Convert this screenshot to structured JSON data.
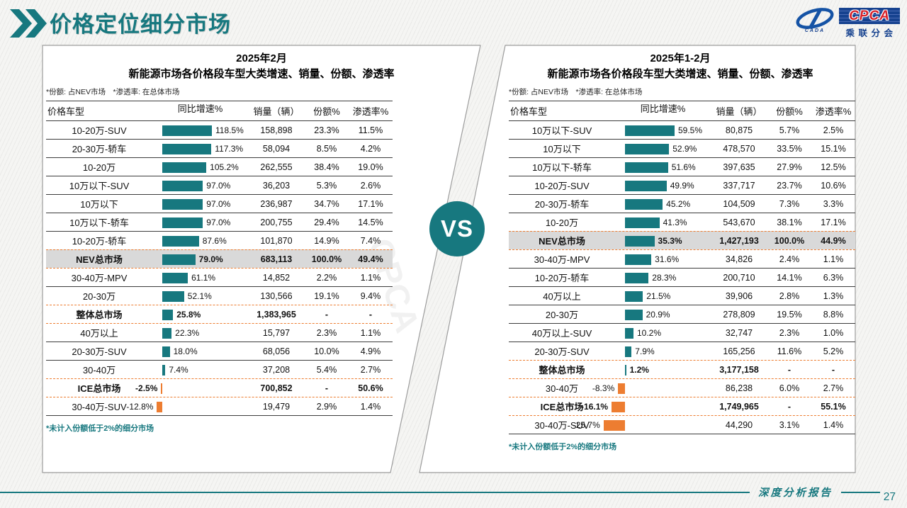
{
  "page": {
    "title": "价格定位细分市场",
    "footer_label": "深度分析报告",
    "page_number": "27"
  },
  "logo": {
    "acronym": "CPCA",
    "branch": "乘联分会",
    "mark": "CADA"
  },
  "vs_label": "VS",
  "watermark": "CPCA",
  "colors": {
    "teal": "#17787F",
    "orange": "#ED7D31",
    "highlight_bg": "#D9D9D9"
  },
  "chart_data": [
    {
      "type": "table",
      "title_line1": "2025年2月",
      "title_line2": "新能源市场各价格段车型大类增速、销量、份额、渗透率",
      "note": "*份额: 占NEV市场　*渗透率: 在总体市场",
      "footnote": "*未计入份额低于2%的细分市场",
      "columns": [
        "价格车型",
        "同比增速%",
        "销量（辆）",
        "份额%",
        "渗透率%"
      ],
      "rows": [
        {
          "label": "10-20万-SUV",
          "growth": 118.5,
          "growth_label": "118.5%",
          "sales": "158,898",
          "share": "23.3%",
          "penetration": "11.5%",
          "style": "",
          "divider": "solid"
        },
        {
          "label": "20-30万-轿车",
          "growth": 117.3,
          "growth_label": "117.3%",
          "sales": "58,094",
          "share": "8.5%",
          "penetration": "4.2%",
          "style": "",
          "divider": "solid"
        },
        {
          "label": "10-20万",
          "growth": 105.2,
          "growth_label": "105.2%",
          "sales": "262,555",
          "share": "38.4%",
          "penetration": "19.0%",
          "style": "",
          "divider": "solid"
        },
        {
          "label": "10万以下-SUV",
          "growth": 97.0,
          "growth_label": "97.0%",
          "sales": "36,203",
          "share": "5.3%",
          "penetration": "2.6%",
          "style": "",
          "divider": "solid"
        },
        {
          "label": "10万以下",
          "growth": 97.0,
          "growth_label": "97.0%",
          "sales": "236,987",
          "share": "34.7%",
          "penetration": "17.1%",
          "style": "",
          "divider": "solid"
        },
        {
          "label": "10万以下-轿车",
          "growth": 97.0,
          "growth_label": "97.0%",
          "sales": "200,755",
          "share": "29.4%",
          "penetration": "14.5%",
          "style": "",
          "divider": "solid"
        },
        {
          "label": "10-20万-轿车",
          "growth": 87.6,
          "growth_label": "87.6%",
          "sales": "101,870",
          "share": "14.9%",
          "penetration": "7.4%",
          "style": "",
          "divider": "solid"
        },
        {
          "label": "NEV总市场",
          "growth": 79.0,
          "growth_label": "79.0%",
          "sales": "683,113",
          "share": "100.0%",
          "penetration": "49.4%",
          "style": "nev",
          "divider": "dashed"
        },
        {
          "label": "30-40万-MPV",
          "growth": 61.1,
          "growth_label": "61.1%",
          "sales": "14,852",
          "share": "2.2%",
          "penetration": "1.1%",
          "style": "",
          "divider": "dashed"
        },
        {
          "label": "20-30万",
          "growth": 52.1,
          "growth_label": "52.1%",
          "sales": "130,566",
          "share": "19.1%",
          "penetration": "9.4%",
          "style": "",
          "divider": "solid"
        },
        {
          "label": "整体总市场",
          "growth": 25.8,
          "growth_label": "25.8%",
          "sales": "1,383,965",
          "share": "-",
          "penetration": "-",
          "style": "total",
          "divider": "dashed"
        },
        {
          "label": "40万以上",
          "growth": 22.3,
          "growth_label": "22.3%",
          "sales": "15,797",
          "share": "2.3%",
          "penetration": "1.1%",
          "style": "",
          "divider": "dashed"
        },
        {
          "label": "20-30万-SUV",
          "growth": 18.0,
          "growth_label": "18.0%",
          "sales": "68,056",
          "share": "10.0%",
          "penetration": "4.9%",
          "style": "",
          "divider": "solid"
        },
        {
          "label": "30-40万",
          "growth": 7.4,
          "growth_label": "7.4%",
          "sales": "37,208",
          "share": "5.4%",
          "penetration": "2.7%",
          "style": "",
          "divider": "solid"
        },
        {
          "label": "ICE总市场",
          "growth": -2.5,
          "growth_label": "-2.5%",
          "sales": "700,852",
          "share": "-",
          "penetration": "50.6%",
          "style": "total",
          "divider": "dashed"
        },
        {
          "label": "30-40万-SUV",
          "growth": -12.8,
          "growth_label": "-12.8%",
          "sales": "19,479",
          "share": "2.9%",
          "penetration": "1.4%",
          "style": "",
          "divider": "dashed"
        }
      ]
    },
    {
      "type": "table",
      "title_line1": "2025年1-2月",
      "title_line2": "新能源市场各价格段车型大类增速、销量、份额、渗透率",
      "note": "*份额: 占NEV市场　*渗透率: 在总体市场",
      "footnote": "*未计入份额低于2%的细分市场",
      "columns": [
        "价格车型",
        "同比增速%",
        "销量（辆）",
        "份额%",
        "渗透率%"
      ],
      "rows": [
        {
          "label": "10万以下-SUV",
          "growth": 59.5,
          "growth_label": "59.5%",
          "sales": "80,875",
          "share": "5.7%",
          "penetration": "2.5%",
          "style": "",
          "divider": "solid"
        },
        {
          "label": "10万以下",
          "growth": 52.9,
          "growth_label": "52.9%",
          "sales": "478,570",
          "share": "33.5%",
          "penetration": "15.1%",
          "style": "",
          "divider": "solid"
        },
        {
          "label": "10万以下-轿车",
          "growth": 51.6,
          "growth_label": "51.6%",
          "sales": "397,635",
          "share": "27.9%",
          "penetration": "12.5%",
          "style": "",
          "divider": "solid"
        },
        {
          "label": "10-20万-SUV",
          "growth": 49.9,
          "growth_label": "49.9%",
          "sales": "337,717",
          "share": "23.7%",
          "penetration": "10.6%",
          "style": "",
          "divider": "solid"
        },
        {
          "label": "20-30万-轿车",
          "growth": 45.2,
          "growth_label": "45.2%",
          "sales": "104,509",
          "share": "7.3%",
          "penetration": "3.3%",
          "style": "",
          "divider": "solid"
        },
        {
          "label": "10-20万",
          "growth": 41.3,
          "growth_label": "41.3%",
          "sales": "543,670",
          "share": "38.1%",
          "penetration": "17.1%",
          "style": "",
          "divider": "solid"
        },
        {
          "label": "NEV总市场",
          "growth": 35.3,
          "growth_label": "35.3%",
          "sales": "1,427,193",
          "share": "100.0%",
          "penetration": "44.9%",
          "style": "nev",
          "divider": "dashed"
        },
        {
          "label": "30-40万-MPV",
          "growth": 31.6,
          "growth_label": "31.6%",
          "sales": "34,826",
          "share": "2.4%",
          "penetration": "1.1%",
          "style": "",
          "divider": "dashed"
        },
        {
          "label": "10-20万-轿车",
          "growth": 28.3,
          "growth_label": "28.3%",
          "sales": "200,710",
          "share": "14.1%",
          "penetration": "6.3%",
          "style": "",
          "divider": "solid"
        },
        {
          "label": "40万以上",
          "growth": 21.5,
          "growth_label": "21.5%",
          "sales": "39,906",
          "share": "2.8%",
          "penetration": "1.3%",
          "style": "",
          "divider": "solid"
        },
        {
          "label": "20-30万",
          "growth": 20.9,
          "growth_label": "20.9%",
          "sales": "278,809",
          "share": "19.5%",
          "penetration": "8.8%",
          "style": "",
          "divider": "solid"
        },
        {
          "label": "40万以上-SUV",
          "growth": 10.2,
          "growth_label": "10.2%",
          "sales": "32,747",
          "share": "2.3%",
          "penetration": "1.0%",
          "style": "",
          "divider": "solid"
        },
        {
          "label": "20-30万-SUV",
          "growth": 7.9,
          "growth_label": "7.9%",
          "sales": "165,256",
          "share": "11.6%",
          "penetration": "5.2%",
          "style": "",
          "divider": "solid"
        },
        {
          "label": "整体总市场",
          "growth": 1.2,
          "growth_label": "1.2%",
          "sales": "3,177,158",
          "share": "-",
          "penetration": "-",
          "style": "total",
          "divider": "dashed"
        },
        {
          "label": "30-40万",
          "growth": -8.3,
          "growth_label": "-8.3%",
          "sales": "86,238",
          "share": "6.0%",
          "penetration": "2.7%",
          "style": "",
          "divider": "dashed"
        },
        {
          "label": "ICE总市场",
          "growth": -16.1,
          "growth_label": "-16.1%",
          "sales": "1,749,965",
          "share": "-",
          "penetration": "55.1%",
          "style": "total",
          "divider": "dashed"
        },
        {
          "label": "30-40万-SUV",
          "growth": -25.7,
          "growth_label": "-25.7%",
          "sales": "44,290",
          "share": "3.1%",
          "penetration": "1.4%",
          "style": "",
          "divider": "dashed"
        }
      ]
    }
  ]
}
